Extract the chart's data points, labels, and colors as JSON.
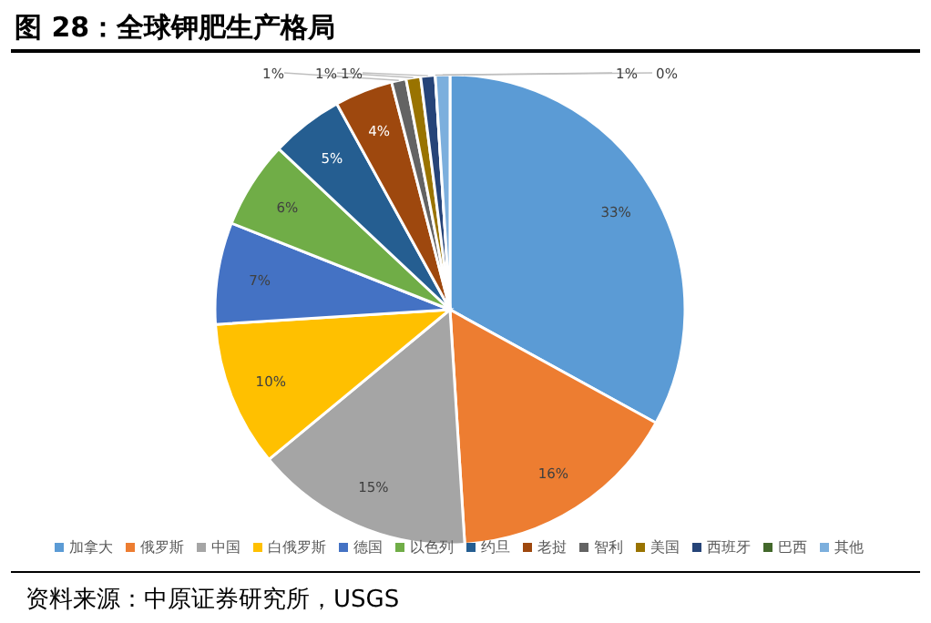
{
  "chart_data": {
    "type": "pie",
    "title": "图 28：全球钾肥生产格局",
    "categories": [
      "加拿大",
      "俄罗斯",
      "中国",
      "白俄罗斯",
      "德国",
      "以色列",
      "约旦",
      "老挝",
      "智利",
      "美国",
      "西班牙",
      "巴西",
      "其他"
    ],
    "values": [
      33,
      16,
      15,
      10,
      7,
      6,
      5,
      4,
      1,
      1,
      1,
      0,
      1
    ],
    "colors": [
      "#5b9bd5",
      "#ed7d31",
      "#a5a5a5",
      "#ffc000",
      "#4472c4",
      "#70ad47",
      "#255e91",
      "#9e480e",
      "#636363",
      "#997300",
      "#264478",
      "#43682b",
      "#7cafdd"
    ],
    "value_labels": [
      "33%",
      "16%",
      "15%",
      "10%",
      "7%",
      "6%",
      "5%",
      "4%",
      "1%",
      "1%",
      "1%",
      "0%",
      "1%"
    ],
    "legend": "bottom",
    "annotations": [
      "资料来源：中原证券研究所，USGS"
    ]
  }
}
